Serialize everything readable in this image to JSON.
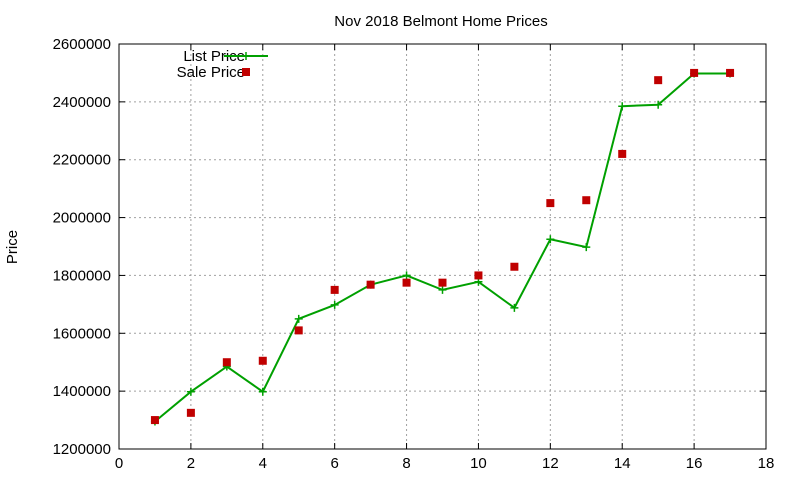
{
  "chart_data": {
    "type": "line",
    "title": "Nov 2018 Belmont Home Prices",
    "xlabel": "",
    "ylabel": "Price",
    "xlim": [
      0,
      18
    ],
    "ylim": [
      1200000,
      2600000
    ],
    "x_ticks": [
      0,
      2,
      4,
      6,
      8,
      10,
      12,
      14,
      16,
      18
    ],
    "y_ticks": [
      1200000,
      1400000,
      1600000,
      1800000,
      2000000,
      2200000,
      2400000,
      2600000
    ],
    "grid": true,
    "legend_position": "top-left",
    "series": [
      {
        "name": "List Price",
        "style": "line-with-plus-markers",
        "color": "#00a000",
        "points": [
          [
            1,
            1295000
          ],
          [
            2,
            1398000
          ],
          [
            3,
            1485000
          ],
          [
            4,
            1398000
          ],
          [
            5,
            1650000
          ],
          [
            6,
            1698000
          ],
          [
            7,
            1768000
          ],
          [
            8,
            1800000
          ],
          [
            9,
            1750000
          ],
          [
            10,
            1778000
          ],
          [
            11,
            1688000
          ],
          [
            12,
            1925000
          ],
          [
            13,
            1898000
          ],
          [
            14,
            2385000
          ],
          [
            15,
            2390000
          ],
          [
            16,
            2498000
          ],
          [
            17,
            2498000
          ]
        ]
      },
      {
        "name": "Sale Price",
        "style": "square-markers",
        "color": "#c00000",
        "points": [
          [
            1,
            1300000
          ],
          [
            2,
            1325000
          ],
          [
            3,
            1500000
          ],
          [
            4,
            1505000
          ],
          [
            5,
            1610000
          ],
          [
            6,
            1750000
          ],
          [
            7,
            1768000
          ],
          [
            8,
            1775000
          ],
          [
            9,
            1775000
          ],
          [
            10,
            1800000
          ],
          [
            11,
            1830000
          ],
          [
            12,
            2050000
          ],
          [
            13,
            2060000
          ],
          [
            14,
            2220000
          ],
          [
            15,
            2475000
          ],
          [
            16,
            2500000
          ],
          [
            17,
            2500000
          ]
        ]
      }
    ]
  }
}
